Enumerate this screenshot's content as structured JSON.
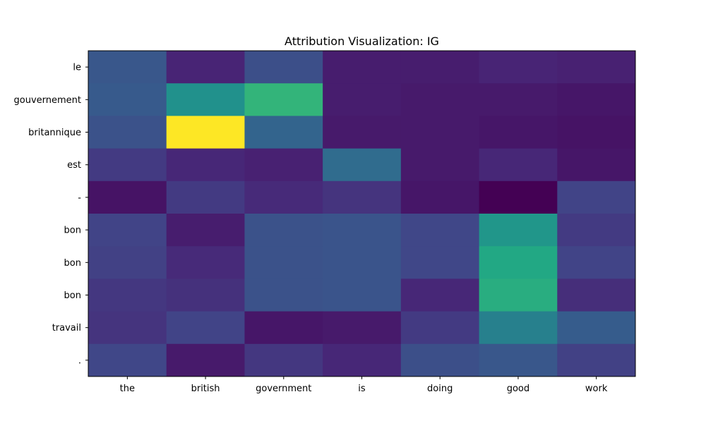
{
  "chart_data": {
    "type": "heatmap",
    "title": "Attribution Visualization: IG",
    "xlabel": "",
    "ylabel": "",
    "colormap": "viridis",
    "x_categories": [
      "the",
      "british",
      "government",
      "is",
      "doing",
      "good",
      "work"
    ],
    "y_categories": [
      "le",
      "gouvernement",
      "britannique",
      "est",
      "-",
      "bon",
      "bon",
      "bon",
      "travail",
      "."
    ],
    "value_range": [
      0,
      1
    ],
    "values": [
      [
        0.27,
        0.1,
        0.24,
        0.08,
        0.08,
        0.1,
        0.09
      ],
      [
        0.28,
        0.5,
        0.65,
        0.08,
        0.07,
        0.07,
        0.06
      ],
      [
        0.25,
        1.0,
        0.32,
        0.07,
        0.07,
        0.06,
        0.05
      ],
      [
        0.17,
        0.11,
        0.09,
        0.35,
        0.07,
        0.11,
        0.06
      ],
      [
        0.05,
        0.17,
        0.12,
        0.15,
        0.06,
        0.0,
        0.2
      ],
      [
        0.2,
        0.08,
        0.25,
        0.26,
        0.21,
        0.52,
        0.17
      ],
      [
        0.19,
        0.12,
        0.25,
        0.26,
        0.21,
        0.6,
        0.2
      ],
      [
        0.16,
        0.14,
        0.25,
        0.26,
        0.11,
        0.62,
        0.13
      ],
      [
        0.15,
        0.2,
        0.06,
        0.07,
        0.17,
        0.43,
        0.29
      ],
      [
        0.21,
        0.07,
        0.16,
        0.11,
        0.24,
        0.27,
        0.19
      ]
    ]
  }
}
